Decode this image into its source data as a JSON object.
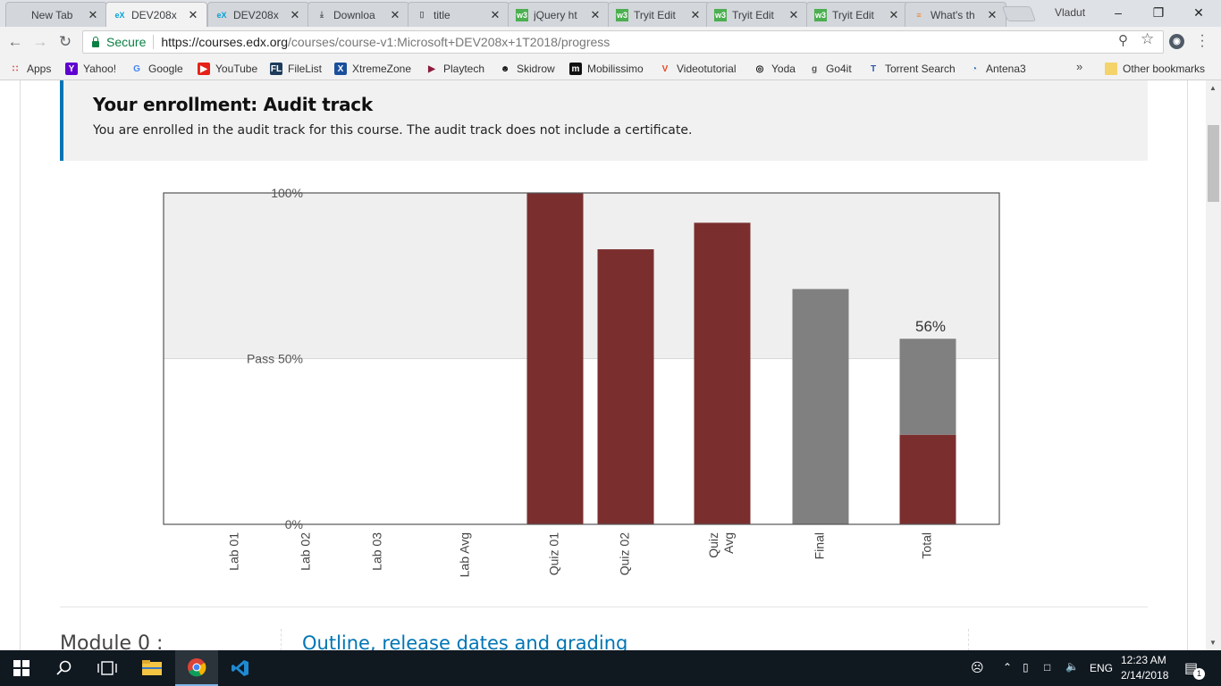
{
  "browser": {
    "tabs": [
      {
        "label": "New Tab",
        "icon": "none"
      },
      {
        "label": "DEV208x",
        "icon": "edx"
      },
      {
        "label": "DEV208x",
        "icon": "edx"
      },
      {
        "label": "Downloa",
        "icon": "download"
      },
      {
        "label": "title",
        "icon": "page"
      },
      {
        "label": "jQuery ht",
        "icon": "w3"
      },
      {
        "label": "Tryit Edit",
        "icon": "w3"
      },
      {
        "label": "Tryit Edit",
        "icon": "w3"
      },
      {
        "label": "Tryit Edit",
        "icon": "w3"
      },
      {
        "label": "What's th",
        "icon": "stackoverflow"
      }
    ],
    "profile_name": "Vladut",
    "secure_label": "Secure",
    "url_host": "https://courses.edx.org",
    "url_path": "/courses/course-v1:Microsoft+DEV208x+1T2018/progress",
    "bookmarks": [
      {
        "label": "Apps",
        "icon": "apps-grid"
      },
      {
        "label": "Yahoo!",
        "icon": "yahoo"
      },
      {
        "label": "Google",
        "icon": "google"
      },
      {
        "label": "YouTube",
        "icon": "youtube"
      },
      {
        "label": "FileList",
        "icon": "filelist"
      },
      {
        "label": "XtremeZone",
        "icon": "xtremezone"
      },
      {
        "label": "Playtech",
        "icon": "playtech"
      },
      {
        "label": "Skidrow",
        "icon": "skidrow"
      },
      {
        "label": "Mobilissimo",
        "icon": "mobilissimo"
      },
      {
        "label": "Videotutorial",
        "icon": "videotutorial"
      },
      {
        "label": "Yoda",
        "icon": "yoda"
      },
      {
        "label": "Go4it",
        "icon": "go4it"
      },
      {
        "label": "Torrent Search",
        "icon": "torrent"
      },
      {
        "label": "Antena3",
        "icon": "antena3"
      }
    ],
    "overflow_label": "»",
    "other_bookmarks_label": "Other bookmarks"
  },
  "enrollment": {
    "title": "Your enrollment: Audit track",
    "text": "You are enrolled in the audit track for this course. The audit track does not include a certificate."
  },
  "chart_data": {
    "type": "bar",
    "categories": [
      "Lab 01",
      "Lab 02",
      "Lab 03",
      "Lab Avg",
      "Quiz 01",
      "Quiz 02",
      "Quiz Avg",
      "Final",
      "Total"
    ],
    "y_tick_labels": [
      "0%",
      "Pass 50%",
      "100%"
    ],
    "ylim": [
      0,
      100
    ],
    "scores": [
      0,
      0,
      0,
      0,
      100,
      83,
      91,
      71,
      0
    ],
    "total_stack": {
      "earned": 27,
      "potential": 56
    },
    "total_label": "56%",
    "pass_threshold": 50,
    "colors": {
      "earned": "#7b2e2e",
      "potential": "#808080",
      "above_pass_band": "#efefef",
      "frame": "#555555"
    }
  },
  "module": {
    "title": "Module 0 :",
    "link": "Outline, release dates and grading"
  },
  "taskbar": {
    "language": "ENG",
    "time": "12:23 AM",
    "date": "2/14/2018",
    "notification_count": "1"
  }
}
